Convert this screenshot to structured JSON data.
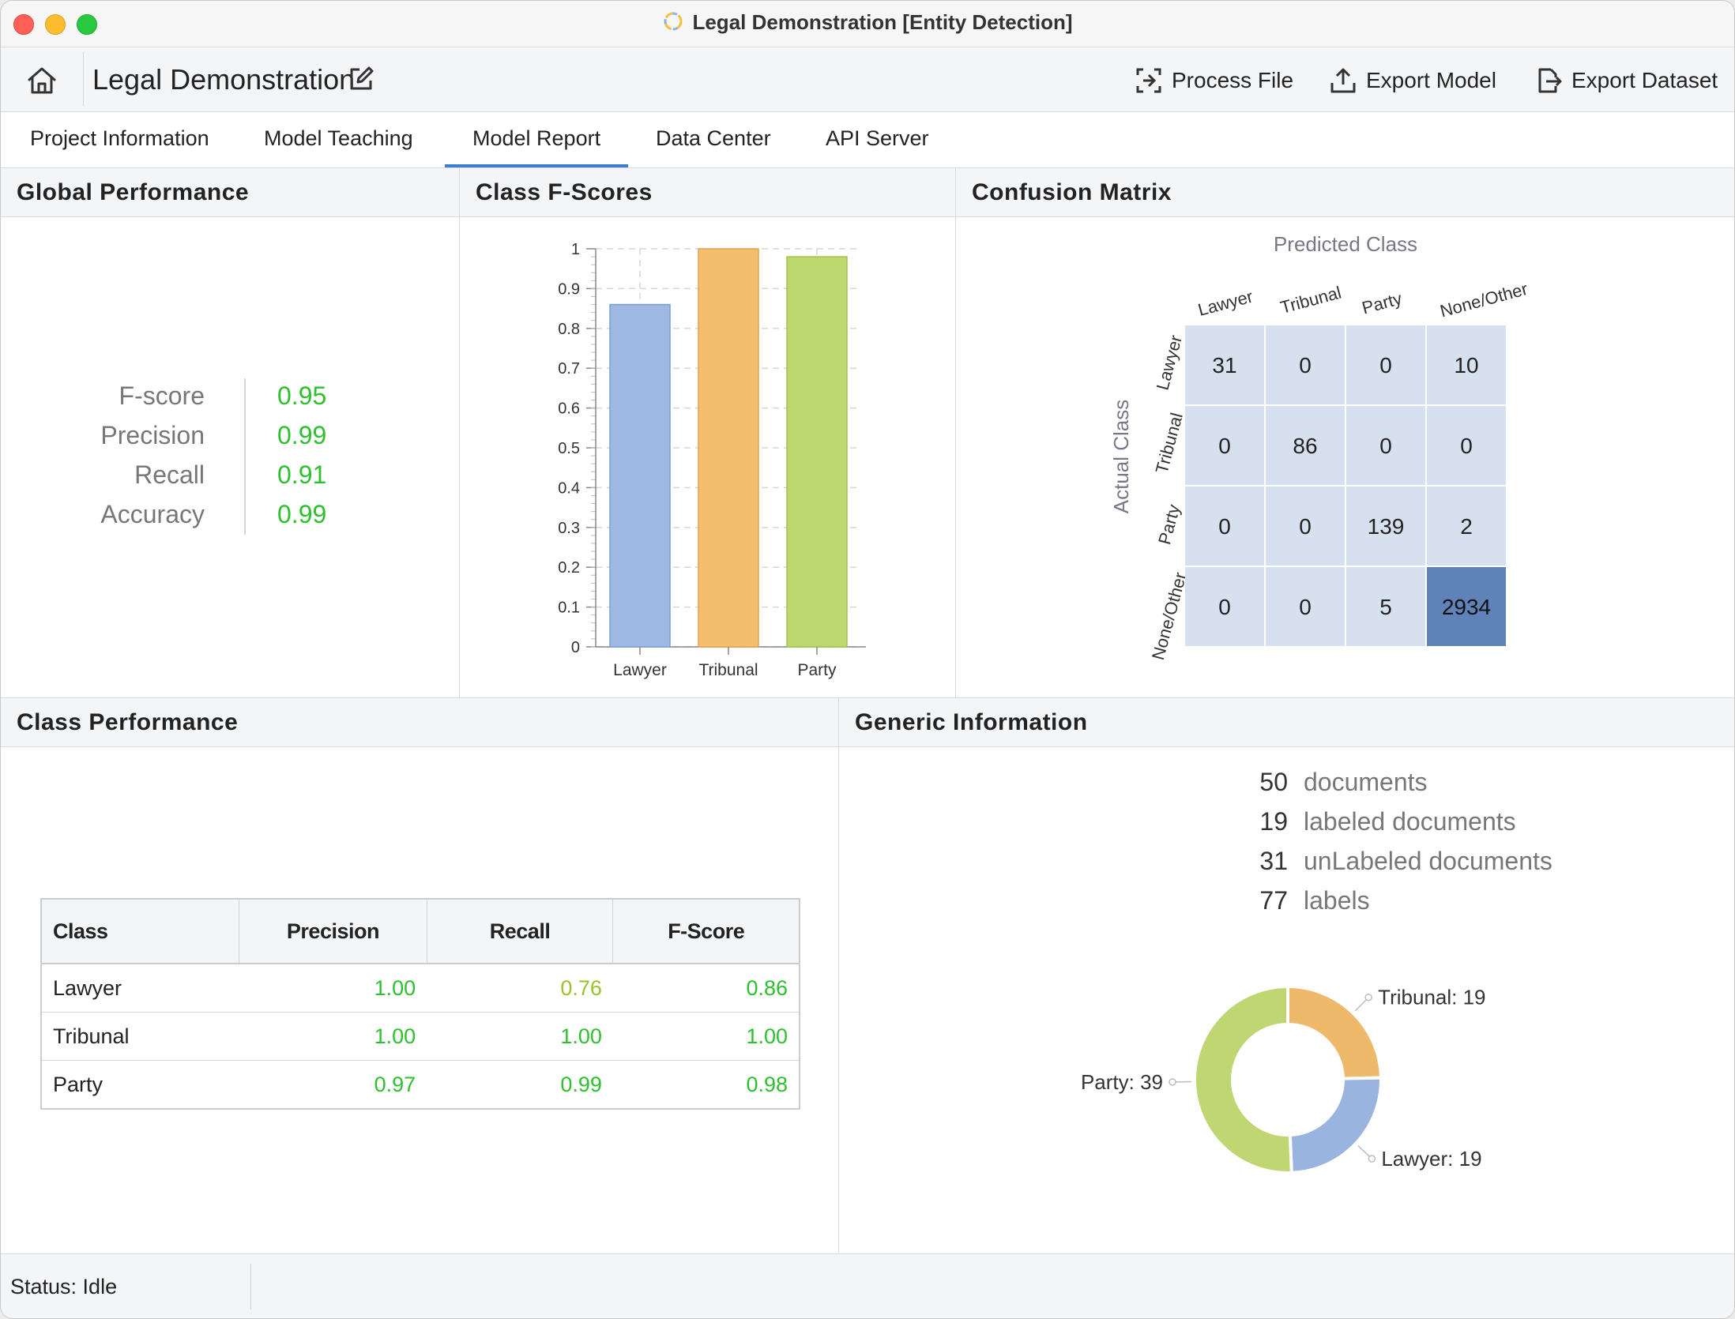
{
  "window": {
    "title": "Legal Demonstration [Entity Detection]"
  },
  "toolbar": {
    "project_name": "Legal Demonstration",
    "actions": [
      {
        "label": "Process File",
        "icon": "scan-icon"
      },
      {
        "label": "Export Model",
        "icon": "upload-icon"
      },
      {
        "label": "Export Dataset",
        "icon": "export-file-icon"
      }
    ]
  },
  "tabs": [
    {
      "label": "Project Information",
      "active": false
    },
    {
      "label": "Model Teaching",
      "active": false
    },
    {
      "label": "Model Report",
      "active": true
    },
    {
      "label": "Data Center",
      "active": false
    },
    {
      "label": "API Server",
      "active": false
    }
  ],
  "global_performance": {
    "title": "Global Performance",
    "metrics": [
      {
        "label": "F-score",
        "value": "0.95"
      },
      {
        "label": "Precision",
        "value": "0.99"
      },
      {
        "label": "Recall",
        "value": "0.91"
      },
      {
        "label": "Accuracy",
        "value": "0.99"
      }
    ]
  },
  "class_fscores": {
    "title": "Class F-Scores"
  },
  "confusion_matrix": {
    "title": "Confusion Matrix",
    "predicted_label": "Predicted Class",
    "actual_label": "Actual Class",
    "classes": [
      "Lawyer",
      "Tribunal",
      "Party",
      "None/Other"
    ],
    "cells": [
      [
        "31",
        "0",
        "0",
        "10"
      ],
      [
        "0",
        "86",
        "0",
        "0"
      ],
      [
        "0",
        "0",
        "139",
        "2"
      ],
      [
        "0",
        "0",
        "5",
        "2934"
      ]
    ]
  },
  "class_performance": {
    "title": "Class Performance",
    "headers": [
      "Class",
      "Precision",
      "Recall",
      "F-Score"
    ],
    "rows": [
      [
        "Lawyer",
        "1.00",
        "0.76",
        "0.86"
      ],
      [
        "Tribunal",
        "1.00",
        "1.00",
        "1.00"
      ],
      [
        "Party",
        "0.97",
        "0.99",
        "0.98"
      ]
    ]
  },
  "generic_information": {
    "title": "Generic Information",
    "stats": [
      {
        "count": "50",
        "label": "documents"
      },
      {
        "count": "19",
        "label": "labeled documents"
      },
      {
        "count": "31",
        "label": "unLabeled documents"
      },
      {
        "count": "77",
        "label": "labels"
      }
    ]
  },
  "status": {
    "text": "Status:  Idle"
  },
  "colors": {
    "value_green": "#2ec02e",
    "value_yellow_green": "#9cc22a",
    "tab_accent": "#3b7fd3",
    "bar_lawyer": "#9db9e3",
    "bar_tribunal": "#f5bd6e",
    "bar_party": "#bdd86f",
    "cm_light": "#d6e0ef",
    "cm_dark": "#5f82b8"
  },
  "chart_data": [
    {
      "type": "bar",
      "categories": [
        "Lawyer",
        "Tribunal",
        "Party"
      ],
      "values": [
        0.86,
        1.0,
        0.98
      ],
      "title": "",
      "xlabel": "",
      "ylabel": "",
      "ylim": [
        0,
        1
      ],
      "yticks": [
        "0",
        "0.1",
        "0.2",
        "0.3",
        "0.4",
        "0.5",
        "0.6",
        "0.7",
        "0.8",
        "0.9",
        "1"
      ],
      "grid": true
    },
    {
      "type": "pie",
      "style": "donut",
      "slices": [
        {
          "label": "Tribunal: 19",
          "value": 19,
          "color": "#efb96b"
        },
        {
          "label": "Lawyer: 19",
          "value": 19,
          "color": "#98b4df"
        },
        {
          "label": "Party: 39",
          "value": 39,
          "color": "#bfd673"
        }
      ]
    }
  ]
}
